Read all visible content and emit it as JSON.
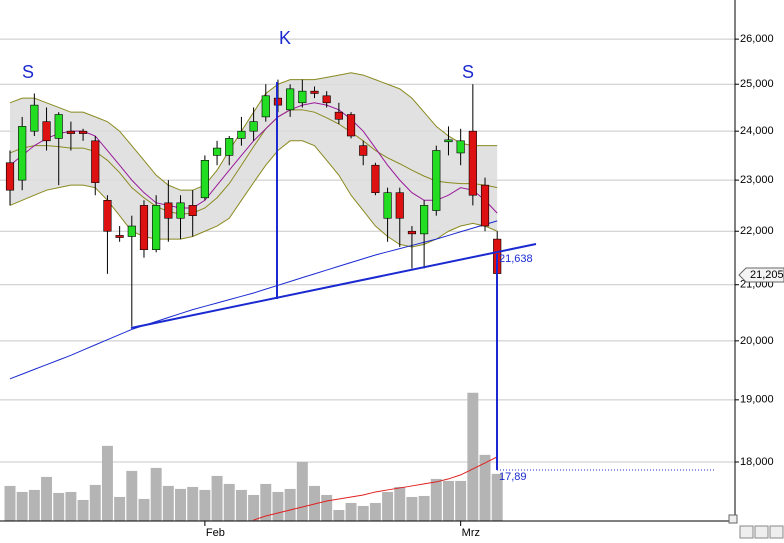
{
  "chart_data": {
    "type": "candlestick",
    "log": true,
    "grid": true,
    "ylim": [
      17.1,
      26.9
    ],
    "yticks": [
      {
        "value": 18,
        "label": "18,000"
      },
      {
        "value": 19,
        "label": "19,000"
      },
      {
        "value": 20,
        "label": "20,000"
      },
      {
        "value": 21,
        "label": "21,000"
      },
      {
        "value": 22,
        "label": "22,000"
      },
      {
        "value": 23,
        "label": "23,000"
      },
      {
        "value": 24,
        "label": "24,000"
      },
      {
        "value": 25,
        "label": "25,000"
      },
      {
        "value": 26,
        "label": "26,000"
      }
    ],
    "y2lim": [
      0,
      260
    ],
    "categories": [
      null,
      null,
      null,
      null,
      null,
      null,
      null,
      null,
      null,
      null,
      null,
      null,
      null,
      null,
      null,
      null,
      "Feb",
      null,
      null,
      null,
      null,
      null,
      null,
      null,
      null,
      null,
      null,
      null,
      null,
      null,
      null,
      null,
      null,
      null,
      null,
      null,
      null,
      "Mrz",
      null,
      null,
      null
    ],
    "open": [
      23.35,
      23.0,
      24.0,
      24.2,
      23.85,
      24.0,
      24.0,
      23.8,
      22.6,
      21.92,
      21.9,
      22.5,
      21.65,
      22.55,
      22.25,
      22.5,
      22.65,
      23.5,
      23.5,
      23.85,
      24.0,
      24.3,
      24.7,
      24.45,
      24.6,
      24.85,
      24.75,
      24.4,
      24.35,
      23.7,
      23.3,
      22.25,
      22.75,
      22.0,
      21.95,
      22.4,
      23.78,
      23.55,
      24.0,
      22.9,
      21.85
    ],
    "high": [
      23.6,
      24.3,
      24.8,
      24.5,
      24.4,
      24.2,
      24.05,
      23.9,
      22.7,
      22.1,
      22.3,
      22.6,
      22.7,
      23.0,
      22.7,
      22.8,
      23.5,
      23.8,
      23.9,
      24.3,
      24.5,
      25.0,
      25.1,
      25.0,
      25.1,
      24.95,
      24.85,
      24.6,
      24.4,
      23.8,
      23.35,
      22.85,
      22.85,
      22.1,
      22.6,
      23.7,
      24.1,
      24.05,
      25.0,
      23.05,
      22.0
    ],
    "low": [
      22.5,
      22.8,
      23.9,
      23.6,
      22.9,
      23.6,
      23.8,
      22.7,
      21.2,
      21.8,
      20.25,
      21.5,
      21.6,
      21.8,
      21.85,
      21.9,
      22.6,
      23.3,
      23.3,
      23.7,
      23.8,
      24.2,
      24.4,
      24.3,
      24.5,
      24.7,
      24.5,
      24.15,
      23.85,
      23.3,
      22.7,
      21.8,
      21.7,
      21.3,
      21.3,
      22.3,
      23.5,
      23.3,
      22.5,
      22.0,
      21.0
    ],
    "close": [
      22.8,
      24.1,
      24.55,
      23.8,
      24.35,
      23.95,
      23.95,
      22.95,
      22.0,
      21.88,
      22.1,
      21.65,
      22.5,
      22.25,
      22.55,
      22.3,
      23.4,
      23.65,
      23.85,
      24.0,
      24.2,
      24.75,
      24.55,
      24.9,
      24.85,
      24.8,
      24.6,
      24.25,
      23.9,
      23.5,
      22.75,
      22.75,
      22.25,
      21.95,
      22.5,
      23.6,
      23.82,
      23.8,
      22.7,
      22.1,
      21.205
    ],
    "up_color": "#22dd22",
    "down_color": "#dd1111",
    "band_fill": "#dcdcdc",
    "lines": [
      {
        "color": "#8a8a20",
        "values": [
          24.6,
          24.7,
          24.7,
          24.6,
          24.5,
          24.4,
          24.4,
          24.3,
          24.2,
          24.0,
          23.7,
          23.4,
          23.1,
          22.9,
          22.8,
          22.8,
          22.9,
          23.2,
          23.6,
          24.0,
          24.4,
          24.8,
          25.0,
          25.1,
          25.1,
          25.1,
          25.15,
          25.2,
          25.25,
          25.2,
          25.1,
          25.0,
          24.9,
          24.7,
          24.4,
          24.1,
          23.9,
          23.75,
          23.7,
          23.7,
          23.7
        ]
      },
      {
        "color": "#8a8a20",
        "values": [
          22.5,
          22.6,
          22.7,
          22.8,
          22.85,
          22.9,
          22.9,
          22.85,
          22.6,
          22.3,
          22.0,
          21.9,
          21.85,
          21.85,
          21.85,
          21.9,
          22.0,
          22.1,
          22.25,
          22.6,
          22.95,
          23.3,
          23.6,
          23.8,
          23.8,
          23.7,
          23.4,
          23.1,
          22.7,
          22.4,
          22.1,
          21.9,
          21.75,
          21.7,
          21.75,
          21.85,
          22.0,
          22.1,
          22.15,
          22.1,
          22.0
        ]
      },
      {
        "color": "#8a8a20",
        "values": [
          23.55,
          23.65,
          23.7,
          23.7,
          23.68,
          23.65,
          23.65,
          23.58,
          23.4,
          23.15,
          22.85,
          22.65,
          22.48,
          22.38,
          22.33,
          22.35,
          22.45,
          22.65,
          22.93,
          23.3,
          23.68,
          24.05,
          24.3,
          24.45,
          24.45,
          24.4,
          24.28,
          24.15,
          23.98,
          23.8,
          23.6,
          23.45,
          23.33,
          23.2,
          23.08,
          22.98,
          22.95,
          22.93,
          22.93,
          22.9,
          22.85
        ]
      },
      {
        "color": "#9a1a9a",
        "values": [
          23.3,
          23.5,
          23.7,
          23.85,
          23.95,
          24.0,
          24.0,
          23.9,
          23.6,
          23.3,
          23.0,
          22.75,
          22.55,
          22.5,
          22.45,
          22.45,
          22.6,
          22.9,
          23.2,
          23.5,
          23.8,
          24.05,
          24.3,
          24.45,
          24.55,
          24.6,
          24.55,
          24.45,
          24.25,
          24.0,
          23.65,
          23.3,
          23.0,
          22.75,
          22.6,
          22.6,
          22.7,
          22.85,
          22.8,
          22.6,
          22.35
        ]
      },
      {
        "color": "#1a2ad0",
        "values": [
          19.35,
          19.43,
          19.51,
          19.59,
          19.67,
          19.75,
          19.84,
          19.93,
          20.02,
          20.11,
          20.2,
          20.27,
          20.34,
          20.41,
          20.48,
          20.55,
          20.61,
          20.67,
          20.73,
          20.79,
          20.85,
          20.92,
          20.99,
          21.06,
          21.13,
          21.2,
          21.27,
          21.34,
          21.41,
          21.48,
          21.55,
          21.61,
          21.67,
          21.73,
          21.79,
          21.85,
          21.92,
          21.99,
          22.06,
          22.13,
          22.2
        ]
      }
    ],
    "volume": {
      "color": "#b4b4b4",
      "axis": "y2",
      "values": [
        17.5,
        14.5,
        15.5,
        22,
        14,
        14.5,
        10.5,
        18,
        37.5,
        12,
        25,
        11,
        26.5,
        17.5,
        16,
        17,
        15.5,
        22.5,
        18.5,
        15.5,
        13,
        18.5,
        14.5,
        16,
        29.5,
        17.5,
        13,
        5.5,
        9,
        7.5,
        9,
        14.5,
        17,
        12,
        12.5,
        21,
        20,
        20,
        64,
        33,
        23.5
      ]
    },
    "volume_ma": {
      "color": "#e02020",
      "axis": "y2",
      "values": [
        null,
        null,
        null,
        null,
        null,
        null,
        null,
        null,
        null,
        null,
        null,
        null,
        null,
        null,
        null,
        null,
        null,
        null,
        null,
        null,
        0.5,
        2.5,
        4,
        5.5,
        7,
        8.5,
        10,
        11,
        12,
        13,
        14.5,
        15.5,
        16.5,
        17.5,
        18.5,
        19.5,
        21,
        23,
        26,
        29,
        32
      ]
    },
    "annotations": [
      "S",
      "K",
      "S",
      "21,638",
      "17,89"
    ],
    "price_label": "21,205"
  }
}
